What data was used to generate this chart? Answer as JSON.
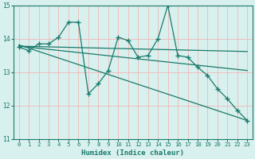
{
  "xlabel": "Humidex (Indice chaleur)",
  "bg_color": "#d8f0ee",
  "grid_color": "#f0b8b8",
  "line_color": "#1a7a6a",
  "xlim": [
    -0.5,
    23.5
  ],
  "ylim": [
    11,
    15
  ],
  "yticks": [
    11,
    12,
    13,
    14,
    15
  ],
  "xticks": [
    0,
    1,
    2,
    3,
    4,
    5,
    6,
    7,
    8,
    9,
    10,
    11,
    12,
    13,
    14,
    15,
    16,
    17,
    18,
    19,
    20,
    21,
    22,
    23
  ],
  "series1_x": [
    0,
    1,
    2,
    3,
    4,
    5,
    6,
    7,
    8,
    9,
    10,
    11,
    12,
    13,
    14,
    15,
    16,
    17,
    18,
    19,
    20,
    21,
    22,
    23
  ],
  "series1_y": [
    13.75,
    13.65,
    13.85,
    13.85,
    14.05,
    14.5,
    14.5,
    12.35,
    12.65,
    13.05,
    14.05,
    13.95,
    13.45,
    13.5,
    14.0,
    15.0,
    13.5,
    13.45,
    13.15,
    12.9,
    12.5,
    12.2,
    11.85,
    11.55
  ],
  "trend1_x": [
    0,
    23
  ],
  "trend1_y": [
    13.78,
    13.62
  ],
  "trend2_x": [
    0,
    23
  ],
  "trend2_y": [
    13.78,
    13.05
  ],
  "trend3_x": [
    0,
    23
  ],
  "trend3_y": [
    13.82,
    11.55
  ]
}
